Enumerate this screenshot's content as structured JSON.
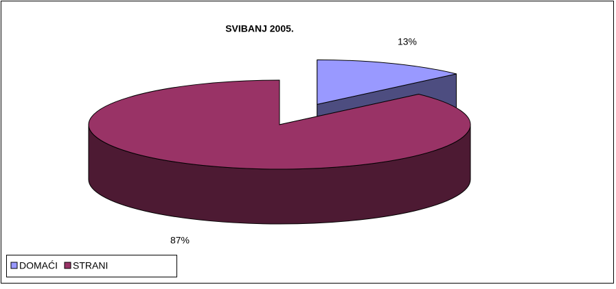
{
  "chart_data": {
    "type": "pie",
    "title": "SVIBANJ 2005.",
    "categories": [
      "DOMAĆI",
      "STRANI"
    ],
    "values": [
      13,
      87
    ],
    "value_labels": [
      "13%",
      "87%"
    ],
    "colors": [
      "#9999ff",
      "#993366"
    ],
    "legend": "bottom-left"
  }
}
